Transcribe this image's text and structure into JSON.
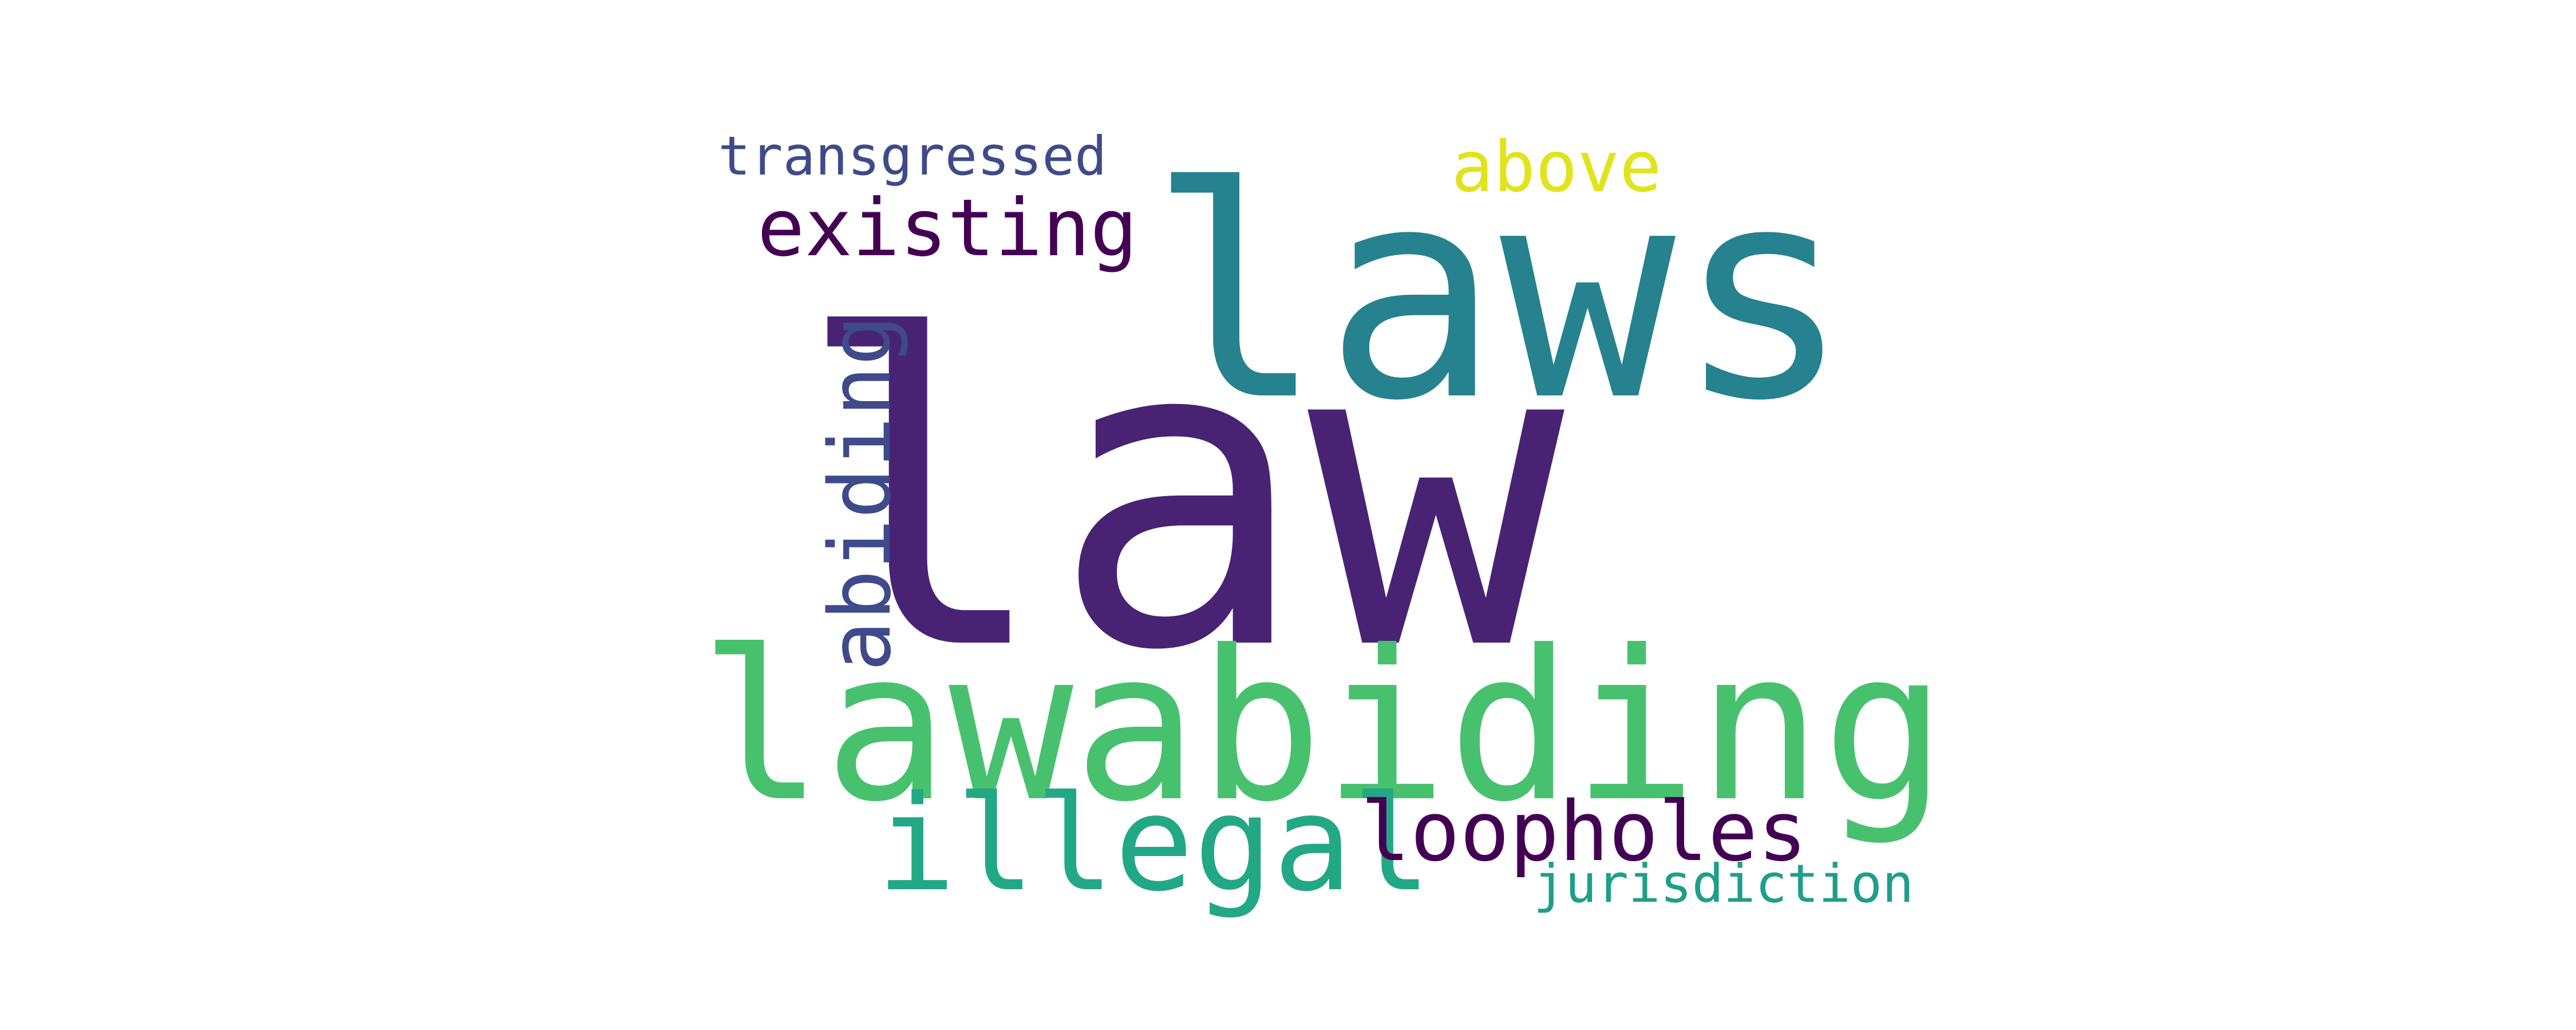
{
  "words": [
    {
      "id": "law",
      "text": "law",
      "color": "#482374"
    },
    {
      "id": "laws",
      "text": "laws",
      "color": "#26828e"
    },
    {
      "id": "lawabiding",
      "text": "lawabiding",
      "color": "#48c16e"
    },
    {
      "id": "illegal",
      "text": "illegal",
      "color": "#22a884"
    },
    {
      "id": "loopholes",
      "text": "loopholes",
      "color": "#440154"
    },
    {
      "id": "abiding",
      "text": "abiding",
      "color": "#3e4a89"
    },
    {
      "id": "existing",
      "text": "existing",
      "color": "#440154"
    },
    {
      "id": "transgressed",
      "text": "transgressed",
      "color": "#3e4a89"
    },
    {
      "id": "above",
      "text": "above",
      "color": "#e1e31d"
    },
    {
      "id": "jurisdiction",
      "text": "jurisdiction",
      "color": "#1f9e89"
    }
  ]
}
